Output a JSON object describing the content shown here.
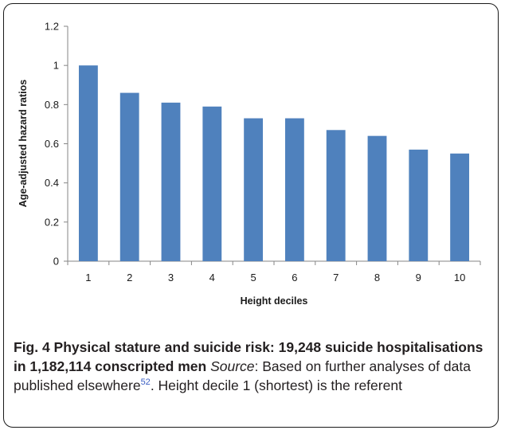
{
  "chart_data": {
    "type": "bar",
    "categories": [
      "1",
      "2",
      "3",
      "4",
      "5",
      "6",
      "7",
      "8",
      "9",
      "10"
    ],
    "values": [
      1.0,
      0.86,
      0.81,
      0.79,
      0.73,
      0.73,
      0.67,
      0.64,
      0.57,
      0.55
    ],
    "y_ticks": [
      "0",
      "0.2",
      "0.4",
      "0.6",
      "0.8",
      "1",
      "1.2"
    ],
    "xlabel": "Height deciles",
    "ylabel": "Age-adjusted hazard ratios",
    "ylim": [
      0,
      1.2
    ],
    "grid": false,
    "bar_color": "#4f81bd"
  },
  "caption": {
    "fig_label": "Fig. 4 Physical stature and suicide risk: 19,248 suicide hospitalisations in 1,182,114 conscripted men",
    "source_label": "Source",
    "source_text": ": Based on further analyses of data published elsewhere",
    "ref_number": "52",
    "tail_text": ". Height decile 1 (shortest) is the referent"
  }
}
